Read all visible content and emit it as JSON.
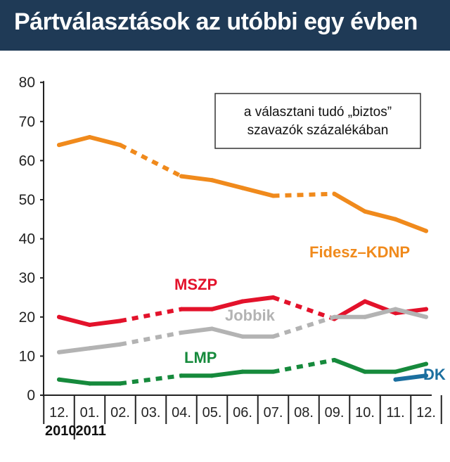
{
  "title": "Pártválasztások az utóbbi egy évben",
  "chart_data": {
    "type": "line",
    "annotation": [
      "a választani tudó „biztos”",
      "szavazók százalékában"
    ],
    "categories": [
      "12.",
      "01.",
      "02.",
      "03.",
      "04.",
      "05.",
      "06.",
      "07.",
      "08.",
      "09.",
      "10.",
      "11.",
      "12."
    ],
    "years": [
      {
        "label": "2010",
        "category_index": 0
      },
      {
        "label": "2011",
        "category_index": 1
      }
    ],
    "ylim": [
      0,
      80
    ],
    "yticks": [
      0,
      10,
      20,
      30,
      40,
      50,
      60,
      70,
      80
    ],
    "grid": false,
    "series": [
      {
        "name": "Fidesz–KDNP",
        "color": "#f08a1c",
        "points": [
          {
            "x": 0,
            "y": 64,
            "dash": false
          },
          {
            "x": 1,
            "y": 66,
            "dash": false
          },
          {
            "x": 2,
            "y": 64,
            "dash": false
          },
          {
            "x": 4,
            "y": 56,
            "dash": true
          },
          {
            "x": 5,
            "y": 55,
            "dash": false
          },
          {
            "x": 6,
            "y": 53,
            "dash": false
          },
          {
            "x": 7,
            "y": 51,
            "dash": false
          },
          {
            "x": 9,
            "y": 51.5,
            "dash": true
          },
          {
            "x": 10,
            "y": 47,
            "dash": false
          },
          {
            "x": 11,
            "y": 45,
            "dash": false
          },
          {
            "x": 12,
            "y": 42,
            "dash": false
          }
        ]
      },
      {
        "name": "MSZP",
        "color": "#e3122b",
        "points": [
          {
            "x": 0,
            "y": 20,
            "dash": false
          },
          {
            "x": 1,
            "y": 18,
            "dash": false
          },
          {
            "x": 2,
            "y": 19,
            "dash": false
          },
          {
            "x": 4,
            "y": 22,
            "dash": true
          },
          {
            "x": 5,
            "y": 22,
            "dash": false
          },
          {
            "x": 6,
            "y": 24,
            "dash": false
          },
          {
            "x": 7,
            "y": 25,
            "dash": false
          },
          {
            "x": 9,
            "y": 19.5,
            "dash": true
          },
          {
            "x": 10,
            "y": 24,
            "dash": false
          },
          {
            "x": 11,
            "y": 21,
            "dash": false
          },
          {
            "x": 12,
            "y": 22,
            "dash": false
          }
        ]
      },
      {
        "name": "Jobbik",
        "color": "#b3b3b3",
        "points": [
          {
            "x": 0,
            "y": 11,
            "dash": false
          },
          {
            "x": 1,
            "y": 12,
            "dash": false
          },
          {
            "x": 2,
            "y": 13,
            "dash": false
          },
          {
            "x": 4,
            "y": 16,
            "dash": true
          },
          {
            "x": 5,
            "y": 17,
            "dash": false
          },
          {
            "x": 6,
            "y": 15,
            "dash": false
          },
          {
            "x": 7,
            "y": 15,
            "dash": false
          },
          {
            "x": 9,
            "y": 20,
            "dash": true
          },
          {
            "x": 10,
            "y": 20,
            "dash": false
          },
          {
            "x": 11,
            "y": 22,
            "dash": false
          },
          {
            "x": 12,
            "y": 20,
            "dash": false
          }
        ]
      },
      {
        "name": "LMP",
        "color": "#168a3c",
        "points": [
          {
            "x": 0,
            "y": 4,
            "dash": false
          },
          {
            "x": 1,
            "y": 3,
            "dash": false
          },
          {
            "x": 2,
            "y": 3,
            "dash": false
          },
          {
            "x": 4,
            "y": 5,
            "dash": true
          },
          {
            "x": 5,
            "y": 5,
            "dash": false
          },
          {
            "x": 6,
            "y": 6,
            "dash": false
          },
          {
            "x": 7,
            "y": 6,
            "dash": false
          },
          {
            "x": 9,
            "y": 9,
            "dash": true
          },
          {
            "x": 10,
            "y": 6,
            "dash": false
          },
          {
            "x": 11,
            "y": 6,
            "dash": false
          },
          {
            "x": 12,
            "y": 8,
            "dash": false
          }
        ]
      },
      {
        "name": "DK",
        "color": "#1b6f9f",
        "points": [
          {
            "x": 11,
            "y": 4,
            "dash": false
          },
          {
            "x": 12,
            "y": 5,
            "dash": false
          }
        ]
      }
    ]
  }
}
